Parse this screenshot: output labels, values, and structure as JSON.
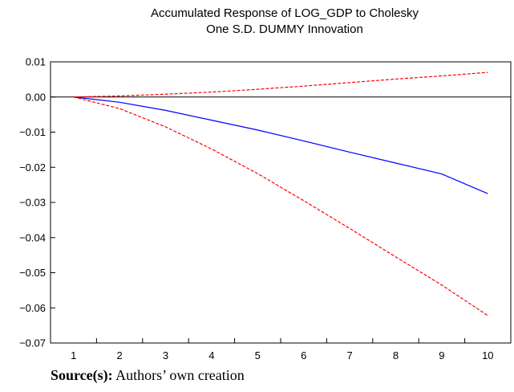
{
  "chart_data": {
    "type": "line",
    "title_lines": [
      "Accumulated Response of LOG_GDP to Cholesky",
      "One S.D. DUMMY Innovation"
    ],
    "xlabel": "",
    "ylabel": "",
    "x": [
      1,
      2,
      3,
      4,
      5,
      6,
      7,
      8,
      9,
      10
    ],
    "x_tick_labels": [
      "1",
      "2",
      "3",
      "4",
      "5",
      "6",
      "7",
      "8",
      "9",
      "10"
    ],
    "y_tick_labels": [
      "0.01",
      "0.00",
      "−0.01",
      "−0.02",
      "−0.03",
      "−0.04",
      "−0.05",
      "−0.06",
      "−0.07"
    ],
    "y_ticks": [
      0.01,
      0.0,
      -0.01,
      -0.02,
      -0.03,
      -0.04,
      -0.05,
      -0.06,
      -0.07
    ],
    "ylim": [
      -0.07,
      0.01
    ],
    "xlim": [
      0.5,
      10.5
    ],
    "zero_line": true,
    "grid": false,
    "legend": "none",
    "series": [
      {
        "role": "response",
        "color": "#0000ff",
        "style": "solid",
        "values": [
          0.0,
          -0.0015,
          -0.0038,
          -0.0066,
          -0.0094,
          -0.0125,
          -0.0157,
          -0.0188,
          -0.0219,
          -0.0275
        ]
      },
      {
        "role": "upper band",
        "color": "#ff0000",
        "style": "dashed",
        "values": [
          0.0,
          0.0003,
          0.0008,
          0.0014,
          0.0022,
          0.0031,
          0.0041,
          0.0051,
          0.006,
          0.007
        ]
      },
      {
        "role": "lower band",
        "color": "#ff0000",
        "style": "dashed",
        "values": [
          0.0,
          -0.0033,
          -0.0085,
          -0.0148,
          -0.0218,
          -0.0295,
          -0.0374,
          -0.0455,
          -0.0535,
          -0.0622
        ]
      }
    ]
  },
  "source": {
    "label": "Source(s):",
    "text": "Authors’ own creation"
  }
}
